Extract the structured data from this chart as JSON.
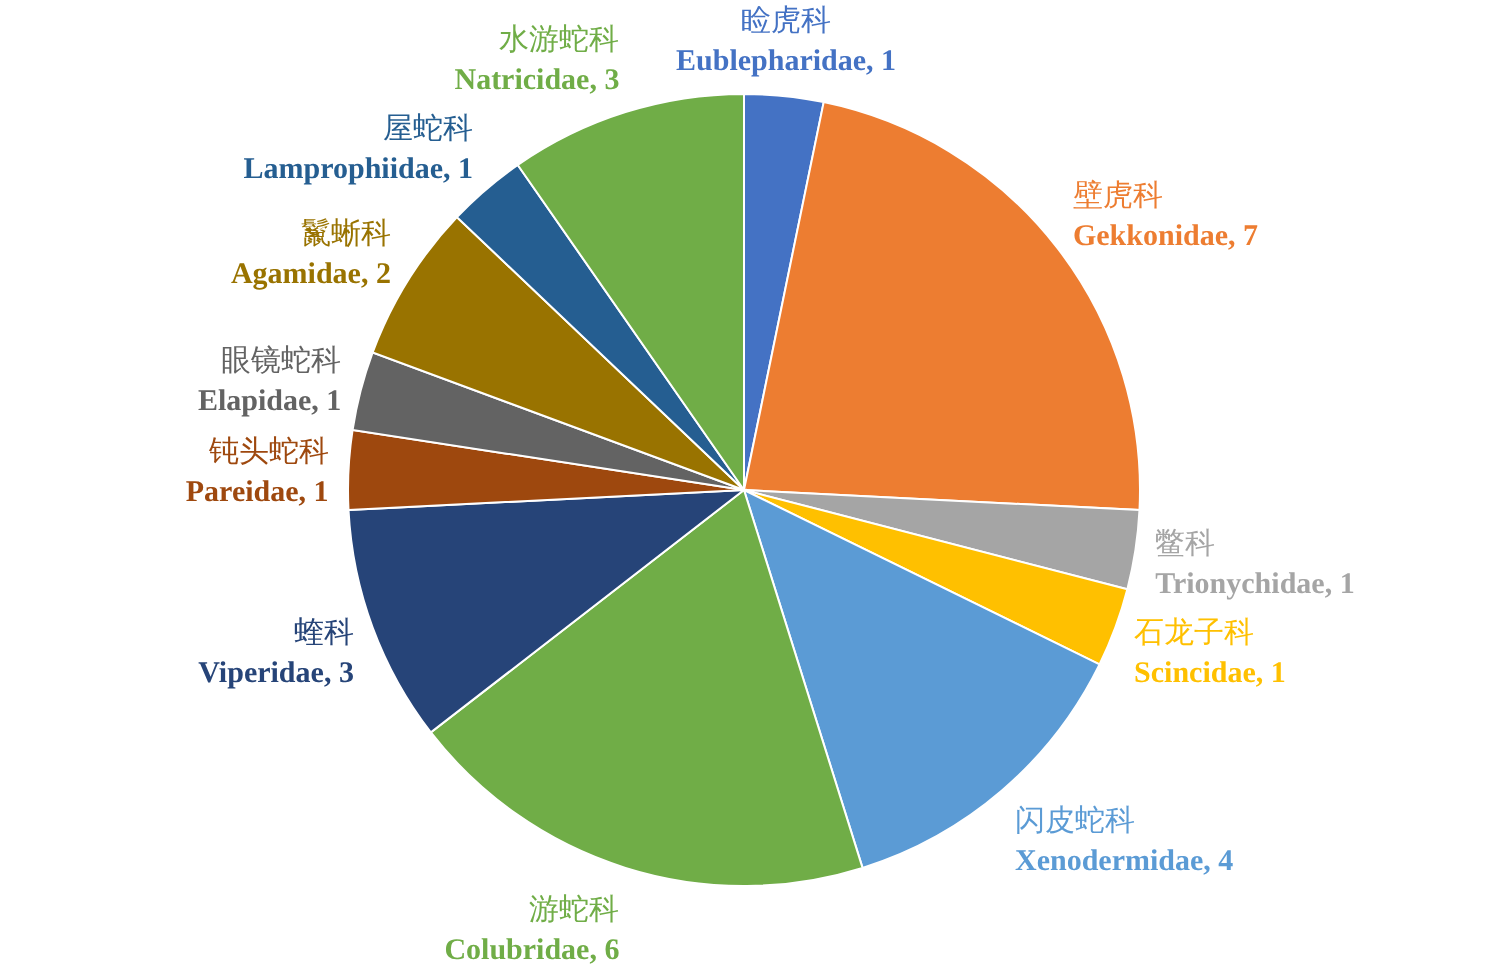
{
  "chart_data": {
    "type": "pie",
    "legend": false,
    "value_labels": [
      ", 1",
      ", 7",
      ", 1",
      ", 1",
      ", 4",
      ", 6",
      ", 3",
      ", 1",
      ", 1",
      ", 2",
      ", 1",
      ", 3"
    ],
    "categories": [
      "睑虎科 Eublepharidae",
      "壁虎科 Gekkonidae",
      "鳖科 Trionychidae",
      "石龙子科 Scincidae",
      "闪皮蛇科 Xenodermidae",
      "游蛇科 Colubridae",
      "蝰科 Viperidae",
      "钝头蛇科 Pareidae",
      "眼镜蛇科 Elapidae",
      "鬣蜥科 Agamidae",
      "屋蛇科 Lamprophiidae",
      "水游蛇科 Natricidae"
    ],
    "values": [
      1,
      7,
      1,
      1,
      4,
      6,
      3,
      1,
      1,
      2,
      1,
      3
    ],
    "colors": [
      "#4472c4",
      "#ed7d31",
      "#a5a5a5",
      "#ffc000",
      "#5b9bd5",
      "#70ad47",
      "#264478",
      "#9e480e",
      "#636363",
      "#997300",
      "#255e91",
      "#70ad47"
    ]
  }
}
